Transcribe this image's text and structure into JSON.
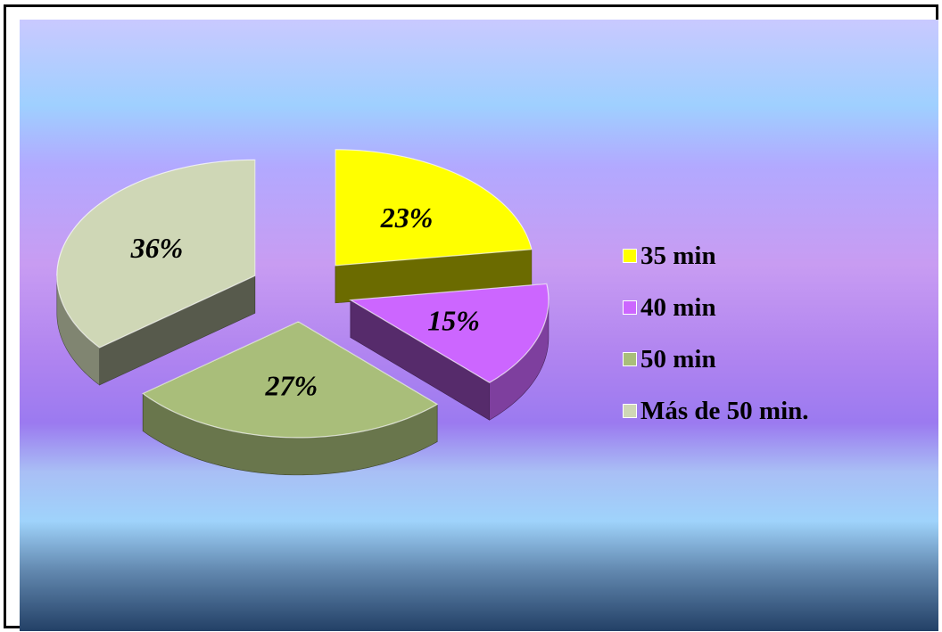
{
  "chart_data": {
    "type": "pie",
    "categories": [
      "35 min",
      "40 min",
      "50 min",
      "Más de 50 min."
    ],
    "values": [
      23,
      15,
      27,
      36
    ],
    "data_labels": [
      "23%",
      "15%",
      "27%",
      "36%"
    ],
    "legend_position": "right",
    "exploded": true,
    "style": "3d",
    "colors": [
      "#ffff00",
      "#cc66ff",
      "#a9be7a",
      "#cfd7b6"
    ]
  }
}
